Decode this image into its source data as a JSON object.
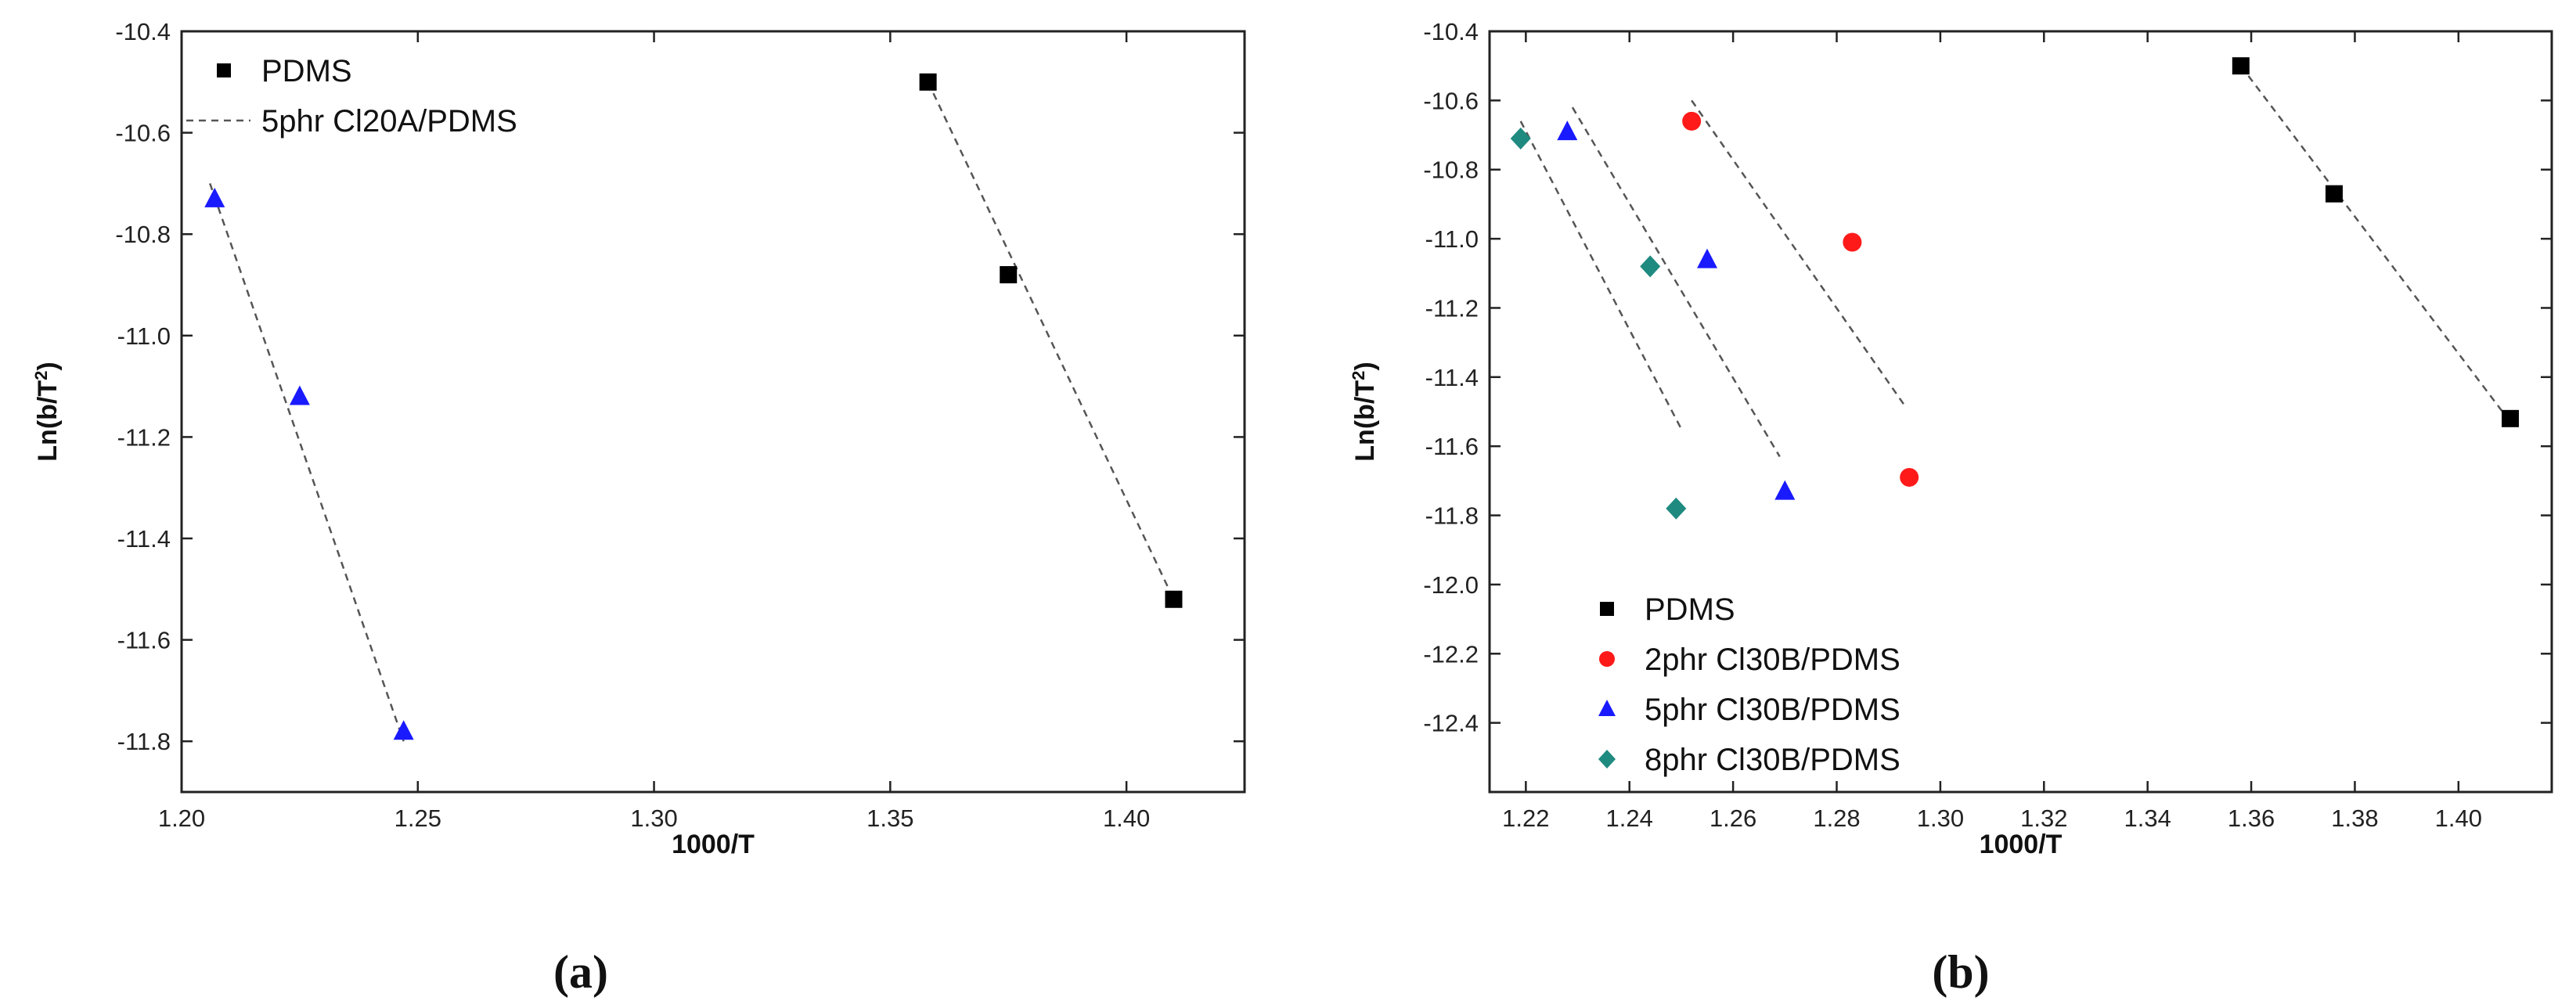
{
  "chart_data": [
    {
      "type": "scatter",
      "panel_label": "(a)",
      "xlabel": "1000/T",
      "ylabel_base": "Ln(b/T",
      "ylabel_sup": "2",
      "ylabel_end": ")",
      "xlim": [
        1.2,
        1.425
      ],
      "ylim": [
        -11.9,
        -10.4
      ],
      "xticks": [
        1.2,
        1.25,
        1.3,
        1.35,
        1.4
      ],
      "xtick_labels": [
        "1.20",
        "1.25",
        "1.30",
        "1.35",
        "1.40"
      ],
      "yticks": [
        -10.4,
        -10.6,
        -10.8,
        -11.0,
        -11.2,
        -11.4,
        -11.6,
        -11.8
      ],
      "ytick_labels": [
        "-10.4",
        "-10.6",
        "-10.8",
        "-11.0",
        "-11.2",
        "-11.4",
        "-11.6",
        "-11.8"
      ],
      "legend": {
        "position": "top-left",
        "entries": [
          {
            "label": "PDMS",
            "kind": "marker",
            "marker": "square",
            "color": "#000000"
          },
          {
            "label": "5phr Cl20A/PDMS",
            "kind": "dashed-line",
            "color": "#555555"
          }
        ]
      },
      "series": [
        {
          "name": "PDMS",
          "marker": "square",
          "color": "#000000",
          "x": [
            1.358,
            1.375,
            1.41
          ],
          "y": [
            -10.5,
            -10.88,
            -11.52
          ],
          "fit": [
            [
              1.358,
              -10.5
            ],
            [
              1.41,
              -11.52
            ]
          ]
        },
        {
          "name": "5phr Cl20A/PDMS",
          "marker": "triangle",
          "color": "#1a1aff",
          "x": [
            1.207,
            1.225,
            1.247
          ],
          "y": [
            -10.73,
            -11.12,
            -11.78
          ],
          "fit": [
            [
              1.206,
              -10.7
            ],
            [
              1.247,
              -11.8
            ]
          ]
        }
      ]
    },
    {
      "type": "scatter",
      "panel_label": "(b)",
      "xlabel": "1000/T",
      "ylabel_base": "Ln(b/T",
      "ylabel_sup": "2",
      "ylabel_end": ")",
      "xlim": [
        1.213,
        1.418
      ],
      "ylim": [
        -12.6,
        -10.4
      ],
      "xticks": [
        1.22,
        1.24,
        1.26,
        1.28,
        1.3,
        1.32,
        1.34,
        1.36,
        1.38,
        1.4
      ],
      "xtick_labels": [
        "1.22",
        "1.24",
        "1.26",
        "1.28",
        "1.30",
        "1.32",
        "1.34",
        "1.36",
        "1.38",
        "1.40"
      ],
      "yticks": [
        -10.4,
        -10.6,
        -10.8,
        -11.0,
        -11.2,
        -11.4,
        -11.6,
        -11.8,
        -12.0,
        -12.2,
        -12.4
      ],
      "ytick_labels": [
        "-10.4",
        "-10.6",
        "-10.8",
        "-11.0",
        "-11.2",
        "-11.4",
        "-11.6",
        "-11.8",
        "-12.0",
        "-12.2",
        "-12.4"
      ],
      "legend": {
        "position": "bottom-left",
        "entries": [
          {
            "label": "PDMS",
            "kind": "marker",
            "marker": "square",
            "color": "#000000"
          },
          {
            "label": "2phr Cl30B/PDMS",
            "kind": "marker",
            "marker": "circle",
            "color": "#ff1a1a"
          },
          {
            "label": "5phr Cl30B/PDMS",
            "kind": "marker",
            "marker": "triangle",
            "color": "#1a1aff"
          },
          {
            "label": "8phr Cl30B/PDMS",
            "kind": "marker",
            "marker": "diamond",
            "color": "#1f8a80"
          }
        ]
      },
      "series": [
        {
          "name": "PDMS",
          "marker": "square",
          "color": "#000000",
          "x": [
            1.358,
            1.376,
            1.41
          ],
          "y": [
            -10.5,
            -10.87,
            -11.52
          ],
          "fit": [
            [
              1.358,
              -10.5
            ],
            [
              1.41,
              -11.53
            ]
          ]
        },
        {
          "name": "2phr Cl30B/PDMS",
          "marker": "circle",
          "color": "#ff1a1a",
          "x": [
            1.252,
            1.283,
            1.294
          ],
          "y": [
            -10.66,
            -11.01,
            -11.69
          ],
          "fit": [
            [
              1.252,
              -10.6
            ],
            [
              1.293,
              -11.48
            ]
          ]
        },
        {
          "name": "5phr Cl30B/PDMS",
          "marker": "triangle",
          "color": "#1a1aff",
          "x": [
            1.228,
            1.255,
            1.27
          ],
          "y": [
            -10.69,
            -11.06,
            -11.73
          ],
          "fit": [
            [
              1.229,
              -10.62
            ],
            [
              1.269,
              -11.63
            ]
          ]
        },
        {
          "name": "8phr Cl30B/PDMS",
          "marker": "diamond",
          "color": "#1f8a80",
          "x": [
            1.219,
            1.244,
            1.249
          ],
          "y": [
            -10.71,
            -11.08,
            -11.78
          ],
          "fit": [
            [
              1.219,
              -10.66
            ],
            [
              1.25,
              -11.55
            ]
          ]
        }
      ]
    }
  ]
}
